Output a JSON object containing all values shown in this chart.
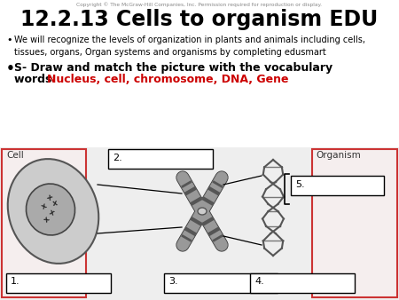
{
  "title": "12.2.13 Cells to organism EDU",
  "copyright": "Copyright © The McGraw-Hill Companies, Inc. Permission required for reproduction or display.",
  "bullet1": "We will recognize the levels of organization in plants and animals including cells,\ntissues, organs, Organ systems and organisms by completing edusmart",
  "bullet2_black": "S- Draw and match the picture with the vocabulary\nwords: ",
  "bullet2_red": "Nucleus, cell, chromosome, DNA, Gene",
  "label_cell": "Cell",
  "label_organism": "Organism",
  "box_labels": [
    "1.",
    "2.",
    "3.",
    "4.",
    "5."
  ],
  "bg_color": "#ffffff",
  "title_color": "#000000",
  "red_color": "#cc0000",
  "box_color": "#ffffff",
  "box_edge": "#000000"
}
